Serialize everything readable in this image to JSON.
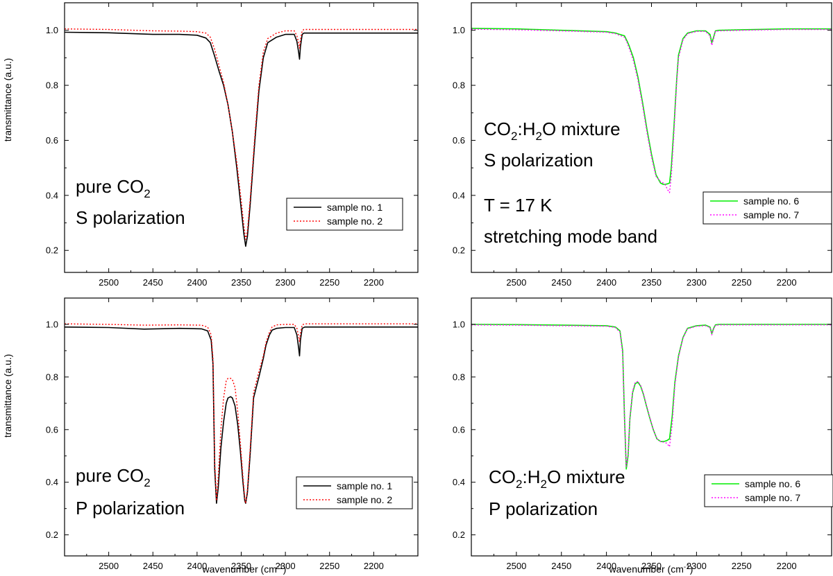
{
  "figure": {
    "xlabel": "wavenumber (cm",
    "xlabel_sup": "-1",
    "xlabel_tail": ")",
    "ylabel": "transmittance (a.u.)"
  },
  "chart_data": [
    {
      "type": "line",
      "xlim": [
        2550,
        2150
      ],
      "ylim": [
        0.12,
        1.1
      ],
      "x_ticks": [
        2500,
        2450,
        2400,
        2350,
        2300,
        2250,
        2200
      ],
      "y_ticks": [
        0.2,
        0.4,
        0.6,
        0.8,
        1.0
      ],
      "xlabel": "",
      "ylabel": "transmittance (a.u.)",
      "annotations": [
        {
          "parts": [
            {
              "t": "pure CO"
            },
            {
              "t": "2",
              "sub": true
            }
          ]
        },
        {
          "parts": [
            {
              "t": "S polarization"
            }
          ]
        }
      ],
      "legend": {
        "position": "bottom-right"
      },
      "series": [
        {
          "name": "sample no. 1",
          "color": "#000000",
          "dash": "solid",
          "x": [
            2550,
            2500,
            2450,
            2420,
            2400,
            2390,
            2385,
            2380,
            2375,
            2370,
            2365,
            2360,
            2355,
            2350,
            2347,
            2345,
            2343,
            2340,
            2335,
            2330,
            2325,
            2320,
            2310,
            2300,
            2290,
            2287,
            2285,
            2284,
            2283,
            2281,
            2279,
            2275,
            2250,
            2200,
            2150
          ],
          "y": [
            0.993,
            0.991,
            0.985,
            0.985,
            0.982,
            0.972,
            0.955,
            0.905,
            0.85,
            0.8,
            0.73,
            0.63,
            0.5,
            0.35,
            0.26,
            0.215,
            0.25,
            0.36,
            0.58,
            0.78,
            0.9,
            0.955,
            0.975,
            0.985,
            0.985,
            0.96,
            0.92,
            0.895,
            0.94,
            0.985,
            0.99,
            0.99,
            0.99,
            0.99,
            0.99
          ]
        },
        {
          "name": "sample no. 2",
          "color": "#ff0000",
          "dash": "dot",
          "x": [
            2550,
            2500,
            2450,
            2420,
            2400,
            2390,
            2385,
            2380,
            2375,
            2370,
            2365,
            2360,
            2355,
            2350,
            2347,
            2345,
            2343,
            2340,
            2335,
            2330,
            2325,
            2320,
            2310,
            2300,
            2290,
            2287,
            2285,
            2284,
            2283,
            2281,
            2279,
            2275,
            2250,
            2200,
            2150
          ],
          "y": [
            1.005,
            1.003,
            0.998,
            0.997,
            0.995,
            0.99,
            0.975,
            0.93,
            0.87,
            0.81,
            0.73,
            0.63,
            0.52,
            0.38,
            0.29,
            0.24,
            0.27,
            0.38,
            0.6,
            0.8,
            0.92,
            0.97,
            0.99,
            0.998,
            0.998,
            0.98,
            0.955,
            0.935,
            0.965,
            0.998,
            1.003,
            1.003,
            1.003,
            1.003,
            1.003
          ]
        }
      ]
    },
    {
      "type": "line",
      "xlim": [
        2550,
        2150
      ],
      "ylim": [
        0.12,
        1.1
      ],
      "x_ticks": [
        2500,
        2450,
        2400,
        2350,
        2300,
        2250,
        2200
      ],
      "y_ticks": [
        0.2,
        0.4,
        0.6,
        0.8,
        1.0
      ],
      "xlabel": "",
      "ylabel": "",
      "annotations": [
        {
          "parts": [
            {
              "t": "CO"
            },
            {
              "t": "2",
              "sub": true
            },
            {
              "t": ":H"
            },
            {
              "t": "2",
              "sub": true
            },
            {
              "t": "O mixture"
            }
          ]
        },
        {
          "parts": [
            {
              "t": "S polarization"
            }
          ]
        },
        {
          "parts": [
            {
              "t": "T = 17 K"
            }
          ]
        },
        {
          "parts": [
            {
              "t": "stretching mode band"
            }
          ]
        }
      ],
      "legend": {
        "position": "bottom-right"
      },
      "series": [
        {
          "name": "sample no. 6",
          "color": "#00ee00",
          "dash": "solid",
          "x": [
            2550,
            2500,
            2450,
            2400,
            2390,
            2380,
            2377,
            2375,
            2370,
            2365,
            2360,
            2355,
            2350,
            2345,
            2340,
            2337,
            2335,
            2332,
            2330,
            2328,
            2325,
            2322,
            2320,
            2315,
            2310,
            2300,
            2290,
            2285,
            2283,
            2281,
            2279,
            2275,
            2250,
            2200,
            2150
          ],
          "y": [
            1.007,
            1.005,
            1.0,
            0.995,
            0.99,
            0.98,
            0.96,
            0.945,
            0.9,
            0.83,
            0.74,
            0.64,
            0.55,
            0.475,
            0.445,
            0.44,
            0.44,
            0.442,
            0.445,
            0.5,
            0.65,
            0.82,
            0.91,
            0.97,
            0.99,
            0.998,
            0.998,
            0.985,
            0.955,
            0.975,
            0.998,
            1.0,
            1.002,
            1.005,
            1.005
          ]
        },
        {
          "name": "sample no. 7",
          "color": "#ff00ff",
          "dash": "dot",
          "x": [
            2550,
            2500,
            2450,
            2400,
            2390,
            2380,
            2377,
            2375,
            2370,
            2365,
            2360,
            2355,
            2350,
            2345,
            2340,
            2337,
            2335,
            2332,
            2330,
            2328,
            2325,
            2322,
            2320,
            2315,
            2310,
            2300,
            2290,
            2285,
            2283,
            2281,
            2279,
            2275,
            2250,
            2200,
            2150
          ],
          "y": [
            1.004,
            1.002,
            0.998,
            0.993,
            0.988,
            0.975,
            0.955,
            0.938,
            0.89,
            0.82,
            0.73,
            0.63,
            0.54,
            0.47,
            0.45,
            0.445,
            0.44,
            0.42,
            0.41,
            0.47,
            0.63,
            0.81,
            0.9,
            0.965,
            0.988,
            0.996,
            0.996,
            0.98,
            0.945,
            0.97,
            0.996,
            0.998,
            1.0,
            1.003,
            1.003
          ]
        }
      ]
    },
    {
      "type": "line",
      "xlim": [
        2550,
        2150
      ],
      "ylim": [
        0.12,
        1.1
      ],
      "x_ticks": [
        2500,
        2450,
        2400,
        2350,
        2300,
        2250,
        2200
      ],
      "y_ticks": [
        0.2,
        0.4,
        0.6,
        0.8,
        1.0
      ],
      "xlabel": "wavenumber (cm-1)",
      "ylabel": "transmittance (a.u.)",
      "annotations": [
        {
          "parts": [
            {
              "t": "pure CO"
            },
            {
              "t": "2",
              "sub": true
            }
          ]
        },
        {
          "parts": [
            {
              "t": "P polarization"
            }
          ]
        }
      ],
      "legend": {
        "position": "bottom-right"
      },
      "series": [
        {
          "name": "sample no. 1",
          "color": "#000000",
          "dash": "solid",
          "x": [
            2550,
            2500,
            2460,
            2420,
            2395,
            2388,
            2384,
            2382,
            2380,
            2378,
            2376,
            2373,
            2370,
            2367,
            2365,
            2362,
            2360,
            2357,
            2354,
            2351,
            2348,
            2346,
            2345,
            2343,
            2340,
            2336,
            2330,
            2325,
            2322,
            2318,
            2315,
            2310,
            2300,
            2290,
            2287,
            2285,
            2284,
            2283,
            2281,
            2278,
            2270,
            2250,
            2200,
            2150
          ],
          "y": [
            0.99,
            0.988,
            0.982,
            0.985,
            0.983,
            0.975,
            0.94,
            0.85,
            0.45,
            0.32,
            0.38,
            0.53,
            0.63,
            0.7,
            0.72,
            0.725,
            0.72,
            0.69,
            0.62,
            0.52,
            0.4,
            0.33,
            0.32,
            0.36,
            0.5,
            0.72,
            0.8,
            0.87,
            0.92,
            0.96,
            0.978,
            0.985,
            0.988,
            0.988,
            0.96,
            0.91,
            0.88,
            0.94,
            0.985,
            0.99,
            0.99,
            0.99,
            0.99,
            0.99
          ]
        },
        {
          "name": "sample no. 2",
          "color": "#ff0000",
          "dash": "dot",
          "x": [
            2550,
            2500,
            2460,
            2420,
            2395,
            2388,
            2384,
            2382,
            2380,
            2378,
            2376,
            2373,
            2370,
            2367,
            2365,
            2362,
            2360,
            2357,
            2354,
            2351,
            2348,
            2346,
            2345,
            2343,
            2340,
            2336,
            2330,
            2325,
            2322,
            2318,
            2315,
            2310,
            2300,
            2290,
            2287,
            2285,
            2284,
            2283,
            2281,
            2278,
            2270,
            2250,
            2200,
            2150
          ],
          "y": [
            1.002,
            1.0,
            0.997,
            0.998,
            0.997,
            0.99,
            0.96,
            0.87,
            0.48,
            0.33,
            0.42,
            0.6,
            0.72,
            0.785,
            0.795,
            0.795,
            0.79,
            0.76,
            0.67,
            0.55,
            0.42,
            0.34,
            0.32,
            0.37,
            0.52,
            0.74,
            0.82,
            0.88,
            0.93,
            0.97,
            0.99,
            0.998,
            1.0,
            1.0,
            0.985,
            0.955,
            0.935,
            0.965,
            0.998,
            1.002,
            1.002,
            1.002,
            1.002,
            1.002
          ]
        }
      ]
    },
    {
      "type": "line",
      "xlim": [
        2550,
        2150
      ],
      "ylim": [
        0.12,
        1.1
      ],
      "x_ticks": [
        2500,
        2450,
        2400,
        2350,
        2300,
        2250,
        2200
      ],
      "y_ticks": [
        0.2,
        0.4,
        0.6,
        0.8,
        1.0
      ],
      "xlabel": "wavenumber (cm-1)",
      "ylabel": "",
      "annotations": [
        {
          "parts": [
            {
              "t": "CO"
            },
            {
              "t": "2",
              "sub": true
            },
            {
              "t": ":H"
            },
            {
              "t": "2",
              "sub": true
            },
            {
              "t": "O mixture"
            }
          ]
        },
        {
          "parts": [
            {
              "t": "P polarization"
            }
          ]
        }
      ],
      "legend": {
        "position": "bottom-right"
      },
      "series": [
        {
          "name": "sample no. 6",
          "color": "#00ee00",
          "dash": "solid",
          "x": [
            2550,
            2500,
            2450,
            2400,
            2390,
            2385,
            2382,
            2380,
            2378,
            2376,
            2374,
            2371,
            2368,
            2365,
            2362,
            2359,
            2356,
            2352,
            2348,
            2344,
            2340,
            2336,
            2333,
            2330,
            2327,
            2324,
            2320,
            2315,
            2310,
            2300,
            2290,
            2285,
            2283,
            2281,
            2279,
            2275,
            2250,
            2200,
            2150
          ],
          "y": [
            1.0,
            0.999,
            0.997,
            0.995,
            0.99,
            0.975,
            0.9,
            0.65,
            0.45,
            0.5,
            0.64,
            0.74,
            0.775,
            0.78,
            0.765,
            0.735,
            0.695,
            0.645,
            0.6,
            0.565,
            0.555,
            0.555,
            0.558,
            0.565,
            0.65,
            0.78,
            0.88,
            0.95,
            0.985,
            0.995,
            0.997,
            0.99,
            0.965,
            0.985,
            0.998,
            1.0,
            1.0,
            1.0,
            1.0
          ]
        },
        {
          "name": "sample no. 7",
          "color": "#ff00ff",
          "dash": "dot",
          "x": [
            2550,
            2500,
            2450,
            2400,
            2390,
            2385,
            2382,
            2380,
            2378,
            2376,
            2374,
            2371,
            2368,
            2365,
            2362,
            2359,
            2356,
            2352,
            2348,
            2344,
            2340,
            2336,
            2333,
            2330,
            2327,
            2324,
            2320,
            2315,
            2310,
            2300,
            2290,
            2285,
            2283,
            2281,
            2279,
            2275,
            2250,
            2200,
            2150
          ],
          "y": [
            0.998,
            0.997,
            0.995,
            0.993,
            0.988,
            0.97,
            0.89,
            0.64,
            0.46,
            0.51,
            0.645,
            0.745,
            0.78,
            0.783,
            0.768,
            0.738,
            0.698,
            0.648,
            0.6,
            0.565,
            0.555,
            0.552,
            0.548,
            0.535,
            0.62,
            0.77,
            0.875,
            0.948,
            0.983,
            0.993,
            0.995,
            0.988,
            0.96,
            0.982,
            0.996,
            0.998,
            0.998,
            0.998,
            0.998
          ]
        }
      ]
    }
  ]
}
